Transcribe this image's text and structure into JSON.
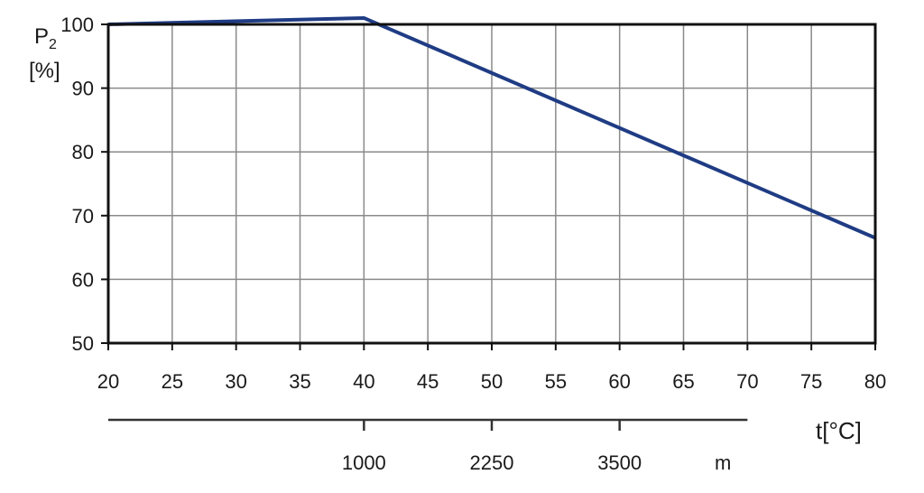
{
  "chart_data": {
    "type": "line",
    "title": "",
    "ylabel_main": "P",
    "ylabel_sub": "2",
    "ylabel_unit": "[%]",
    "xlabel": "t[°C]",
    "xlim": [
      20,
      80
    ],
    "ylim": [
      50,
      100
    ],
    "x_ticks": [
      20,
      25,
      30,
      35,
      40,
      45,
      50,
      55,
      60,
      65,
      70,
      75,
      80
    ],
    "y_ticks": [
      50,
      60,
      70,
      80,
      90,
      100
    ],
    "grid": true,
    "series": [
      {
        "name": "",
        "color": "#1f3c84",
        "x": [
          20,
          40,
          80
        ],
        "y": [
          100,
          101,
          66.5
        ]
      }
    ],
    "secondary_axis": {
      "unit": "m",
      "range": [
        20,
        70
      ],
      "ticks": [
        {
          "at": 40,
          "label": "1000"
        },
        {
          "at": 50,
          "label": "2250"
        },
        {
          "at": 60,
          "label": "3500"
        }
      ]
    }
  }
}
